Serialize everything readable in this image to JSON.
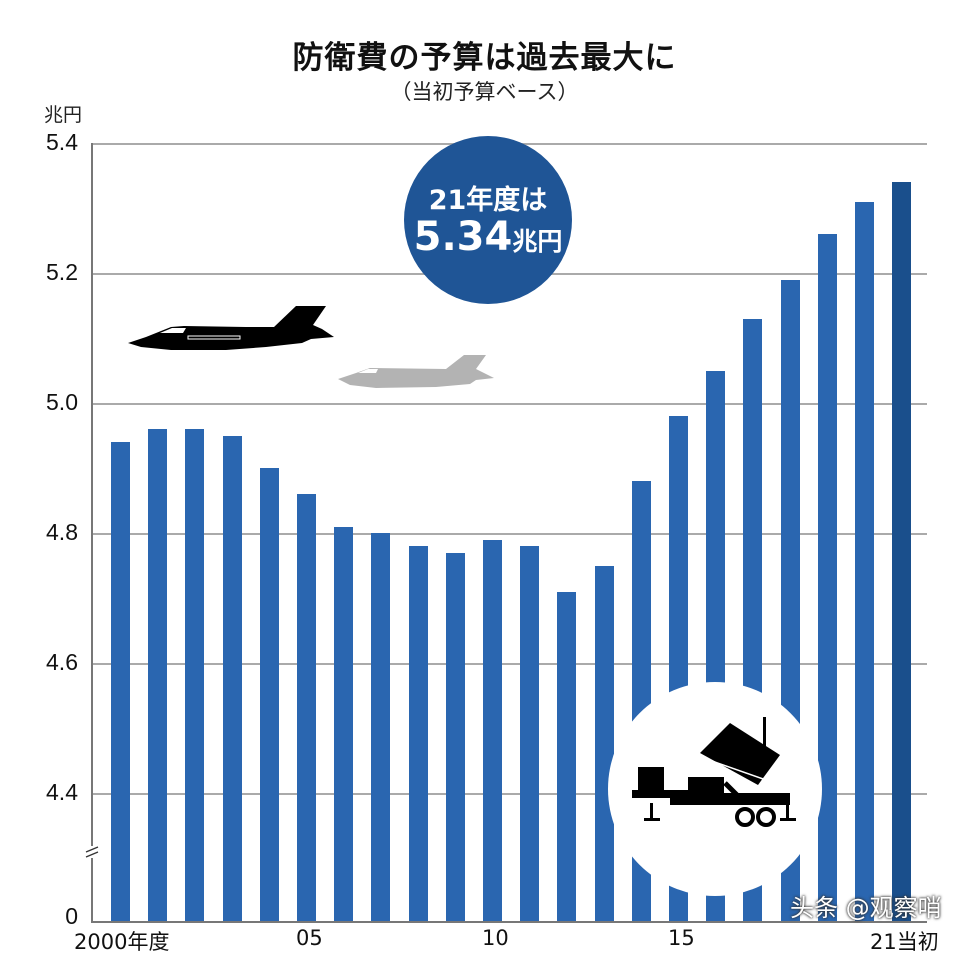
{
  "header": {
    "title": "防衛費の予算は過去最大に",
    "subtitle": "（当初予算ベース）"
  },
  "axis": {
    "unit": "兆円",
    "y_ticks": [
      "5.4",
      "5.2",
      "5.0",
      "4.8",
      "4.6",
      "4.4",
      "0"
    ],
    "x_ticks": [
      "2000年度",
      "05",
      "10",
      "15",
      "21当初"
    ]
  },
  "callout": {
    "line1": "21年度は",
    "value": "5.34",
    "unit": "兆円"
  },
  "icons": {
    "jet_black": "fighter-jet-icon",
    "jet_gray": "fighter-jet-icon",
    "missile_launcher": "missile-launcher-icon"
  },
  "watermark": "头条 @观察哨",
  "colors": {
    "bar": "#2a66b0",
    "bar_highlight": "#1a4f8c",
    "callout": "#1f5596",
    "grid": "#aaaaaa"
  },
  "chart_data": {
    "type": "bar",
    "title": "防衛費の予算は過去最大に",
    "subtitle": "（当初予算ベース）",
    "xlabel": "年度",
    "ylabel": "兆円",
    "ylim": [
      4.4,
      5.4
    ],
    "axis_break": "between 0 and 4.4",
    "grid": true,
    "categories": [
      "2000",
      "2001",
      "2002",
      "2003",
      "2004",
      "2005",
      "2006",
      "2007",
      "2008",
      "2009",
      "2010",
      "2011",
      "2012",
      "2013",
      "2014",
      "2015",
      "2016",
      "2017",
      "2018",
      "2019",
      "2020",
      "2021"
    ],
    "values": [
      4.94,
      4.96,
      4.96,
      4.95,
      4.9,
      4.86,
      4.81,
      4.8,
      4.78,
      4.77,
      4.79,
      4.78,
      4.71,
      4.75,
      4.88,
      4.98,
      5.05,
      5.13,
      5.19,
      5.26,
      5.31,
      5.34
    ],
    "annotations": [
      "21年度は 5.34兆円"
    ]
  }
}
